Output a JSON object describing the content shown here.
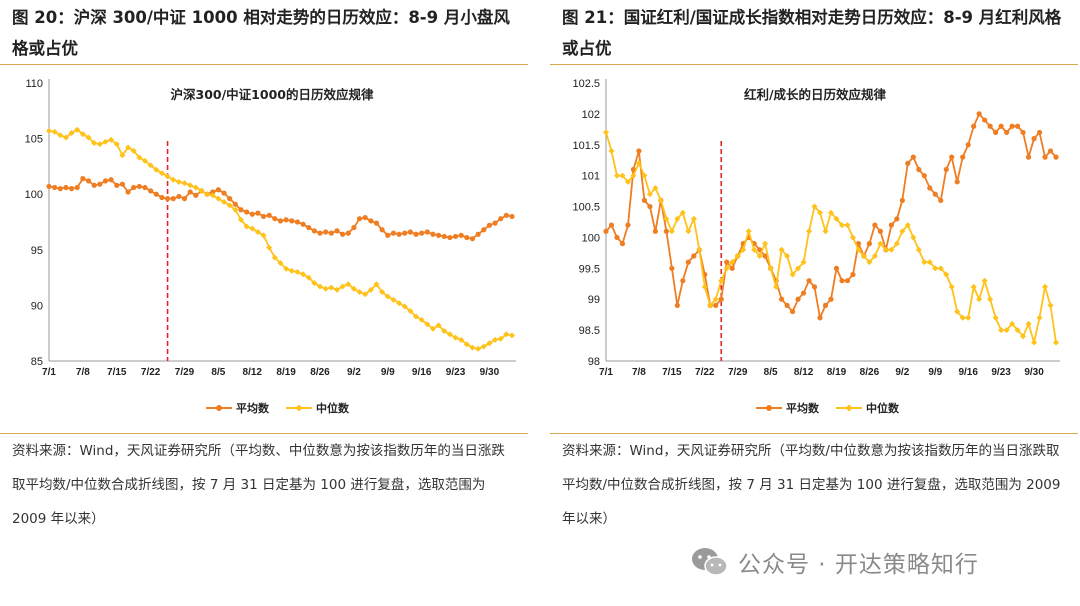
{
  "left": {
    "figure_title": "图 20：沪深 300/中证 1000 相对走势的日历效应：8-9 月小盘风格或占优",
    "source_note": "资料来源：Wind，天风证券研究所（平均数、中位数意为按该指数历年的当日涨跌取平均数/中位数合成折线图，按 7 月 31 日定基为 100 进行复盘，选取范围为 2009 年以来）"
  },
  "right": {
    "figure_title": "图 21：国证红利/国证成长指数相对走势日历效应：8-9 月红利风格或占优",
    "source_note": "资料来源：Wind，天风证券研究所（平均数/中位数意为按该指数历年的当日涨跌取平均数/中位数合成折线图，按 7 月 31 日定基为 100 进行复盘，选取范围为 2009 年以来）"
  },
  "watermark": {
    "text": "公众号 · 开达策略知行",
    "icon": "wechat-icon"
  },
  "colors": {
    "mean": "#ef7d22",
    "median": "#ffc21a",
    "marker_line": "#e0262b",
    "rule": "#d9a84e"
  },
  "chart_data": [
    {
      "type": "line",
      "title": "沪深300/中证1000的日历效应规律",
      "ylim": [
        85,
        110
      ],
      "yticks": [
        85,
        90,
        95,
        100,
        105,
        110
      ],
      "x_tick_labels": [
        "7/1",
        "7/8",
        "7/15",
        "7/22",
        "7/29",
        "8/5",
        "8/12",
        "8/19",
        "8/26",
        "9/2",
        "9/9",
        "9/16",
        "9/23",
        "9/30"
      ],
      "vline_at_label": "7/31",
      "vline_index": 21,
      "legend": [
        "平均数",
        "中位数"
      ],
      "series": [
        {
          "name": "平均数",
          "values": [
            100.7,
            100.6,
            100.5,
            100.6,
            100.5,
            100.6,
            101.4,
            101.2,
            100.8,
            100.9,
            101.2,
            101.3,
            100.8,
            100.9,
            100.2,
            100.6,
            100.7,
            100.6,
            100.3,
            100.0,
            99.7,
            99.6,
            99.6,
            99.8,
            99.6,
            100.2,
            99.9,
            100.3,
            100.0,
            100.2,
            100.4,
            100.1,
            99.6,
            99.1,
            98.6,
            98.4,
            98.2,
            98.3,
            98.0,
            98.1,
            97.8,
            97.6,
            97.7,
            97.6,
            97.5,
            97.3,
            97.0,
            96.7,
            96.5,
            96.6,
            96.5,
            96.7,
            96.4,
            96.5,
            97.0,
            97.8,
            97.9,
            97.6,
            97.4,
            96.8,
            96.3,
            96.5,
            96.4,
            96.5,
            96.6,
            96.4,
            96.5,
            96.6,
            96.4,
            96.3,
            96.2,
            96.1,
            96.2,
            96.3,
            96.1,
            96.0,
            96.4,
            96.8,
            97.2,
            97.4,
            97.8,
            98.1,
            98.0
          ]
        },
        {
          "name": "中位数",
          "values": [
            105.7,
            105.6,
            105.3,
            105.1,
            105.5,
            105.8,
            105.4,
            105.1,
            104.6,
            104.5,
            104.7,
            104.9,
            104.5,
            103.5,
            104.2,
            103.9,
            103.3,
            103.0,
            102.6,
            102.2,
            101.9,
            101.6,
            101.3,
            101.1,
            101.0,
            100.8,
            100.6,
            100.3,
            100.0,
            99.9,
            99.6,
            99.3,
            99.0,
            98.6,
            97.7,
            97.1,
            96.9,
            96.6,
            96.3,
            95.2,
            94.3,
            93.8,
            93.3,
            93.1,
            93.0,
            92.8,
            92.5,
            92.0,
            91.7,
            91.5,
            91.6,
            91.4,
            91.7,
            91.9,
            91.5,
            91.2,
            91.0,
            91.4,
            91.9,
            91.2,
            90.8,
            90.5,
            90.2,
            89.9,
            89.5,
            89.0,
            88.7,
            88.3,
            87.9,
            88.2,
            87.7,
            87.4,
            87.1,
            86.9,
            86.5,
            86.2,
            86.1,
            86.3,
            86.6,
            86.9,
            87.0,
            87.4,
            87.3
          ]
        }
      ]
    },
    {
      "type": "line",
      "title": "红利/成长的日历效应规律",
      "ylim": [
        98,
        102.5
      ],
      "yticks": [
        98,
        98.5,
        99,
        99.5,
        100,
        100.5,
        101,
        101.5,
        102,
        102.5
      ],
      "x_tick_labels": [
        "7/1",
        "7/8",
        "7/15",
        "7/22",
        "7/29",
        "8/5",
        "8/12",
        "8/19",
        "8/26",
        "9/2",
        "9/9",
        "9/16",
        "9/23",
        "9/30"
      ],
      "vline_at_label": "7/31",
      "vline_index": 21,
      "legend": [
        "平均数",
        "中位数"
      ],
      "series": [
        {
          "name": "平均数",
          "values": [
            100.1,
            100.2,
            100.0,
            99.9,
            100.2,
            101.1,
            101.4,
            100.6,
            100.5,
            100.1,
            100.6,
            100.1,
            99.5,
            98.9,
            99.3,
            99.6,
            99.7,
            99.8,
            99.4,
            98.9,
            98.9,
            99.0,
            99.6,
            99.5,
            99.7,
            99.9,
            100.0,
            99.9,
            99.8,
            99.7,
            99.5,
            99.3,
            99.0,
            98.9,
            98.8,
            99.0,
            99.1,
            99.3,
            99.2,
            98.7,
            98.9,
            99.0,
            99.5,
            99.3,
            99.3,
            99.4,
            99.9,
            99.7,
            99.9,
            100.2,
            100.1,
            99.8,
            100.2,
            100.3,
            100.6,
            101.2,
            101.3,
            101.1,
            101.0,
            100.8,
            100.7,
            100.6,
            101.1,
            101.3,
            100.9,
            101.3,
            101.5,
            101.8,
            102.0,
            101.9,
            101.8,
            101.7,
            101.8,
            101.7,
            101.8,
            101.8,
            101.7,
            101.3,
            101.6,
            101.7,
            101.3,
            101.4,
            101.3
          ]
        },
        {
          "name": "中位数",
          "values": [
            101.7,
            101.4,
            101.0,
            101.0,
            100.9,
            101.0,
            101.2,
            101.0,
            100.7,
            100.8,
            100.6,
            100.3,
            100.1,
            100.3,
            100.4,
            100.1,
            100.3,
            99.8,
            99.2,
            98.9,
            99.0,
            99.3,
            99.5,
            99.6,
            99.7,
            99.8,
            100.1,
            99.8,
            99.7,
            99.9,
            99.5,
            99.2,
            99.8,
            99.7,
            99.4,
            99.5,
            99.6,
            100.1,
            100.5,
            100.4,
            100.1,
            100.4,
            100.3,
            100.2,
            100.2,
            100.0,
            99.8,
            99.7,
            99.6,
            99.7,
            99.9,
            99.8,
            99.8,
            99.9,
            100.1,
            100.2,
            100.0,
            99.8,
            99.6,
            99.6,
            99.5,
            99.5,
            99.4,
            99.2,
            98.8,
            98.7,
            98.7,
            99.2,
            99.0,
            99.3,
            99.0,
            98.7,
            98.5,
            98.5,
            98.6,
            98.5,
            98.4,
            98.6,
            98.3,
            98.7,
            99.2,
            98.9,
            98.3
          ]
        }
      ]
    }
  ]
}
